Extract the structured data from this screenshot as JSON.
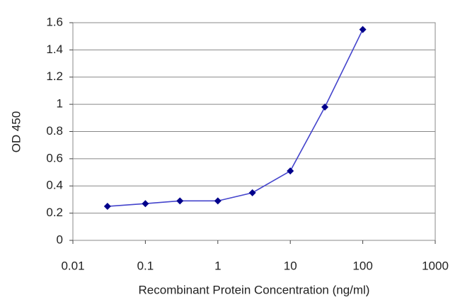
{
  "chart_data": {
    "type": "line",
    "x_label": "Recombinant Protein Concentration (ng/ml)",
    "y_label": "OD 450",
    "x": [
      0.03,
      0.1,
      0.3,
      1,
      3,
      10,
      30,
      100
    ],
    "series": [
      {
        "color": "#4444cc",
        "marker_color": "#00008b",
        "values": [
          0.25,
          0.27,
          0.29,
          0.29,
          0.35,
          0.51,
          0.98,
          1.55
        ]
      }
    ],
    "xscale": "log",
    "xlim": [
      0.01,
      1000
    ],
    "xticks": [
      0.01,
      0.1,
      1,
      10,
      100,
      1000
    ],
    "ylim": [
      0,
      1.6
    ],
    "yticks": [
      0,
      0.2,
      0.4,
      0.6,
      0.8,
      1,
      1.2,
      1.4,
      1.6
    ],
    "grid": true
  }
}
